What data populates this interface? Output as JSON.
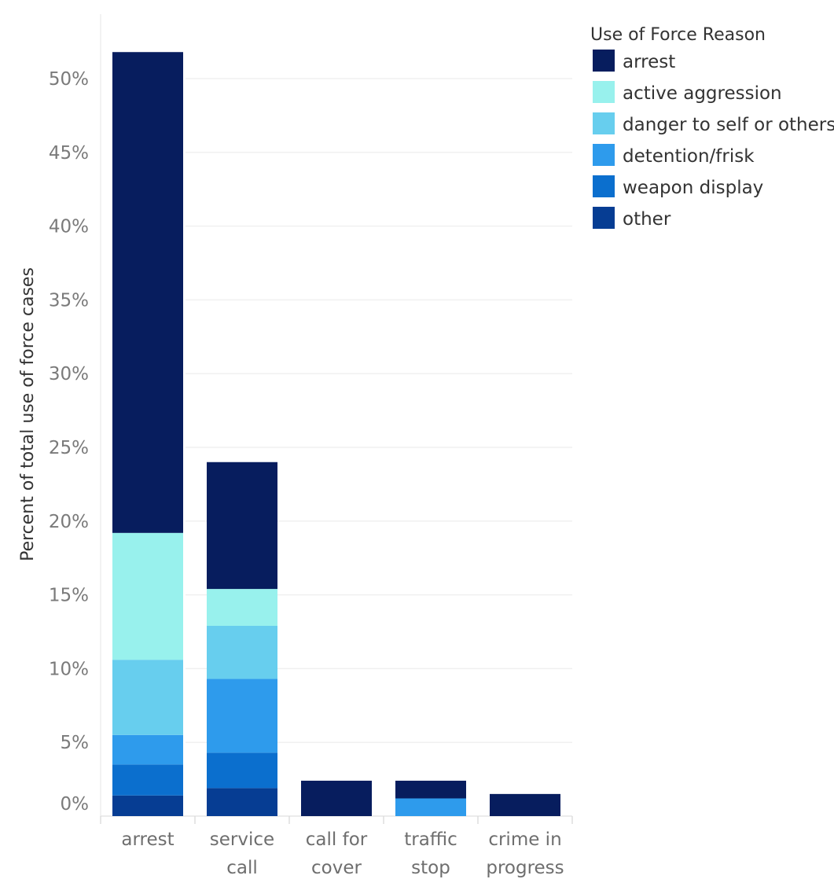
{
  "chart_data": {
    "type": "bar",
    "stacked": true,
    "title": "",
    "xlabel": "",
    "ylabel": "Percent of total use of force cases",
    "ylim": [
      0,
      53
    ],
    "yticks": [
      0,
      5,
      10,
      15,
      20,
      25,
      30,
      35,
      40,
      45,
      50
    ],
    "ytick_labels": [
      "0%",
      "5%",
      "10%",
      "15%",
      "20%",
      "25%",
      "30%",
      "35%",
      "40%",
      "45%",
      "50%"
    ],
    "grid": true,
    "legend_position": "top-right",
    "legend_title": "Use of Force Reason",
    "categories": [
      [
        "arrest"
      ],
      [
        "service",
        "call"
      ],
      [
        "call for",
        "cover"
      ],
      [
        "traffic",
        "stop"
      ],
      [
        "crime in",
        "progress"
      ]
    ],
    "series": [
      {
        "name": "other",
        "color": "#063d93",
        "values": [
          1.4,
          1.9,
          0,
          0,
          0
        ]
      },
      {
        "name": "weapon display",
        "color": "#0b6fce",
        "values": [
          2.1,
          2.4,
          0,
          0,
          0
        ]
      },
      {
        "name": "detention/frisk",
        "color": "#2e9bec",
        "values": [
          2.0,
          5.0,
          0,
          1.2,
          0
        ]
      },
      {
        "name": "danger to self or others",
        "color": "#67ceee",
        "values": [
          5.1,
          3.6,
          0,
          0,
          0
        ]
      },
      {
        "name": "active aggression",
        "color": "#98f1ed",
        "values": [
          8.6,
          2.5,
          0,
          0,
          0
        ]
      },
      {
        "name": "arrest",
        "color": "#071d5e",
        "values": [
          32.6,
          8.6,
          2.4,
          1.2,
          1.5
        ]
      }
    ],
    "legend_order": [
      "arrest",
      "active aggression",
      "danger to self or others",
      "detention/frisk",
      "weapon display",
      "other"
    ]
  }
}
